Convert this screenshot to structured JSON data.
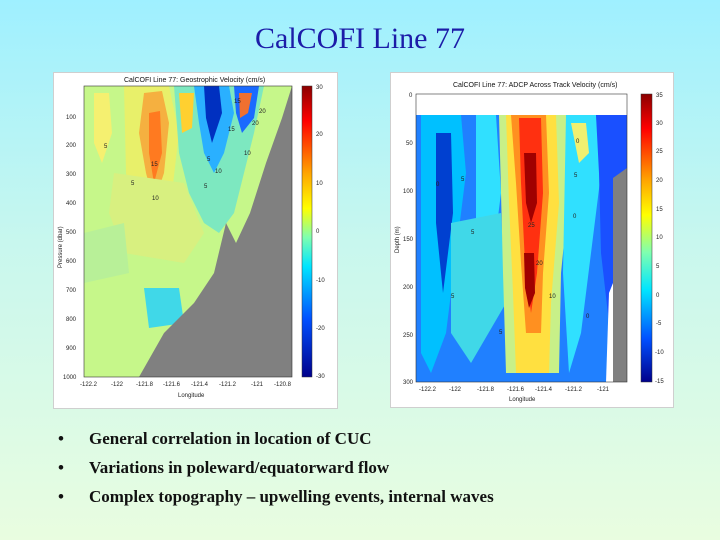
{
  "slide": {
    "title": "CalCOFI Line 77",
    "bullets": [
      "General correlation in location of CUC",
      "Variations in poleward/equatorward flow",
      "Complex topography – upwelling events, internal waves"
    ]
  },
  "chart_data": [
    {
      "type": "heatmap",
      "title": "CalCOFI Line 77: Geostrophic Velocity (cm/s)",
      "xlabel": "Longitude",
      "ylabel": "Pressure (dbar)",
      "xticks": [
        "-122.2",
        "-122",
        "-121.8",
        "-121.6",
        "-121.4",
        "-121.2",
        "-121",
        "-120.8"
      ],
      "yticks": [
        "100",
        "200",
        "300",
        "400",
        "500",
        "600",
        "700",
        "800",
        "900",
        "1000"
      ],
      "colorbar_ticks": [
        "30",
        "20",
        "10",
        "0",
        "-10",
        "-20",
        "-30"
      ],
      "clim": [
        -30,
        30
      ],
      "contour_labels": [
        "15",
        "15",
        "20",
        "10",
        "20",
        "10",
        "15",
        "5",
        "5",
        "10",
        "5",
        "5"
      ],
      "colors": {
        "high": "#8b0000",
        "mid": "#40e0a0",
        "low": "#00008b",
        "topography": "#808080"
      }
    },
    {
      "type": "heatmap",
      "title": "CalCOFI Line 77: ADCP Across Track Velocity (cm/s)",
      "xlabel": "Longitude",
      "ylabel": "Depth (m)",
      "xticks": [
        "-122.2",
        "-122",
        "-121.8",
        "-121.6",
        "-121.4",
        "-121.2",
        "-121"
      ],
      "yticks": [
        "0",
        "50",
        "100",
        "150",
        "200",
        "250",
        "300"
      ],
      "colorbar_ticks": [
        "35",
        "30",
        "25",
        "20",
        "15",
        "10",
        "5",
        "0",
        "-5",
        "-10",
        "-15"
      ],
      "clim": [
        -15,
        35
      ],
      "contour_labels": [
        "5",
        "0",
        "5",
        "0",
        "5",
        "25",
        "20",
        "10",
        "0",
        "5",
        "5",
        "0"
      ],
      "colors": {
        "high": "#8b0000",
        "mid": "#40e0a0",
        "low": "#00008b",
        "topography": "#808080"
      }
    }
  ]
}
